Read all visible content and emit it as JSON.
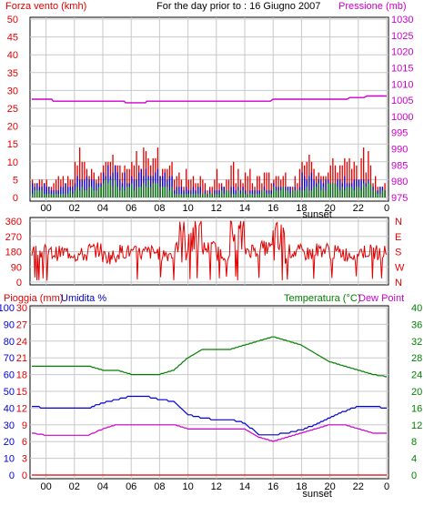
{
  "colors": {
    "wind": "#e00000",
    "gust": "#e00000",
    "avg": "#0000cc",
    "low": "#008000",
    "pressure": "#cc00cc",
    "direction": "#e00000",
    "rain": "#e00000",
    "humidity": "#0000cc",
    "temperature": "#008000",
    "dewpoint": "#cc00cc",
    "grid": "#c8c8c8",
    "frame": "#000000"
  },
  "header": {
    "left_label": "Forza vento (kmh)",
    "center_label": "For the day prior to : 16 Giugno 2007",
    "right_label": "Pressione (mb)"
  },
  "panel3_labels": {
    "rain": "Pioggia (mm)",
    "humidity": "Umidita %",
    "temperature": "Temperatura (°C)",
    "dewpoint": "Dew Point"
  },
  "hour_labels": [
    "00",
    "02",
    "04",
    "06",
    "08",
    "10",
    "12",
    "14",
    "16",
    "18",
    "20",
    "22",
    "0"
  ],
  "sunset_label": "sunset",
  "chart_data": [
    {
      "type": "bar",
      "name": "wind",
      "x_unit": "hour",
      "xlim": [
        23,
        48
      ],
      "ylabel_left": "Forza vento (kmh)",
      "ylabel_right": "Pressione (mb)",
      "ylim_left": [
        0,
        50
      ],
      "yticks_left": [
        "0",
        "5",
        "10",
        "15",
        "20",
        "25",
        "30",
        "35",
        "40",
        "45",
        "50"
      ],
      "ylim_right": [
        975,
        1030
      ],
      "yticks_right": [
        "975",
        "980",
        "985",
        "990",
        "995",
        "1000",
        "1005",
        "1010",
        "1015",
        "1020",
        "1025",
        "1030"
      ],
      "gust_hourly_max": [
        6,
        6,
        6,
        14,
        8,
        12,
        10,
        16,
        14,
        10,
        8,
        6,
        6,
        8,
        10,
        8,
        8,
        8,
        8,
        12,
        8,
        14,
        12,
        14,
        8,
        6
      ],
      "average_hourly": [
        4,
        3,
        4,
        6,
        5,
        9,
        7,
        8,
        9,
        6,
        3,
        3,
        2,
        3,
        3,
        2,
        3,
        4,
        3,
        7,
        6,
        5,
        6,
        5,
        3,
        2
      ],
      "low_hourly": [
        2,
        1,
        2,
        3,
        3,
        5,
        4,
        4,
        5,
        3,
        1,
        1,
        1,
        2,
        2,
        1,
        2,
        3,
        2,
        4,
        4,
        4,
        4,
        4,
        2,
        1
      ],
      "pressure": {
        "x": [
          23,
          23.5,
          24.4,
          24.5,
          29.5,
          29.6,
          31.0,
          31.1,
          39.8,
          40.0,
          45.2,
          45.4,
          46.4,
          46.6,
          48
        ],
        "y": [
          1005.3,
          1005.3,
          1005.3,
          1004.7,
          1004.7,
          1004.2,
          1004.2,
          1004.7,
          1004.7,
          1005.3,
          1005.3,
          1005.8,
          1005.8,
          1006.3,
          1006.3
        ]
      }
    },
    {
      "type": "line",
      "name": "wind direction",
      "x_unit": "hour",
      "xlim": [
        23,
        48
      ],
      "ylim": [
        0,
        360
      ],
      "yticks": [
        "0",
        "90",
        "180",
        "270",
        "360"
      ],
      "right_labels": [
        "N",
        "W",
        "S",
        "E",
        "N"
      ],
      "hourly_typical_deg": [
        180,
        170,
        175,
        160,
        190,
        150,
        180,
        170,
        175,
        165,
        240,
        280,
        200,
        170,
        260,
        190,
        200,
        230,
        180,
        170,
        190,
        175,
        165,
        180,
        175,
        180
      ]
    },
    {
      "type": "line",
      "name": "temperature, humidity, rain",
      "x_unit": "hour",
      "xlim": [
        23,
        48
      ],
      "ylim_rain": [
        0,
        30
      ],
      "yticks_rain": [
        "0",
        "3",
        "6",
        "9",
        "12",
        "15",
        "18",
        "21",
        "24",
        "27",
        "30"
      ],
      "ylim_humidity": [
        0,
        100
      ],
      "yticks_humidity": [
        "0",
        "10",
        "20",
        "30",
        "40",
        "50",
        "60",
        "70",
        "80",
        "90",
        "100"
      ],
      "ylim_temperature": [
        0,
        40
      ],
      "yticks_temperature": [
        "0",
        "4",
        "8",
        "12",
        "16",
        "20",
        "24",
        "28",
        "32",
        "36",
        "40"
      ],
      "series": [
        {
          "name": "Temperatura (°C)",
          "key": "temperature",
          "x": [
            23,
            24,
            25,
            26,
            27,
            28,
            29,
            30,
            31,
            32,
            33,
            34,
            35,
            36,
            37,
            38,
            39,
            40,
            41,
            42,
            43,
            44,
            45,
            46,
            47,
            48
          ],
          "y": [
            26,
            26,
            26,
            26,
            26,
            25,
            25,
            24,
            24,
            24,
            25,
            28,
            30,
            30,
            30,
            31,
            32,
            33,
            32,
            31,
            29,
            27,
            26,
            25,
            24,
            23.5
          ]
        },
        {
          "name": "Umidita %",
          "key": "humidity",
          "x": [
            23,
            24,
            25,
            26,
            27,
            28,
            29,
            30,
            31,
            32,
            33,
            34,
            35,
            36,
            37,
            38,
            39,
            40,
            41,
            42,
            43,
            44,
            45,
            46,
            47,
            48
          ],
          "y": [
            41,
            40,
            40,
            40,
            40,
            43,
            45,
            47,
            47,
            45,
            44,
            36,
            34,
            33,
            33,
            31,
            24,
            24,
            25,
            27,
            30,
            34,
            38,
            41,
            41,
            40
          ]
        },
        {
          "name": "Dew Point",
          "key": "dewpoint",
          "x": [
            23,
            24,
            25,
            26,
            27,
            28,
            29,
            30,
            31,
            32,
            33,
            34,
            35,
            36,
            37,
            38,
            39,
            40,
            41,
            42,
            43,
            44,
            45,
            46,
            47,
            48
          ],
          "y": [
            10,
            9.5,
            9.5,
            9.5,
            9.5,
            11,
            12,
            12,
            12,
            12,
            12,
            11,
            11,
            11,
            11,
            11,
            9,
            8,
            9,
            10,
            11,
            12,
            12,
            11,
            10,
            10
          ]
        },
        {
          "name": "Pioggia (mm)",
          "key": "rain",
          "x": [
            23,
            48
          ],
          "y": [
            0,
            0
          ]
        }
      ]
    }
  ]
}
